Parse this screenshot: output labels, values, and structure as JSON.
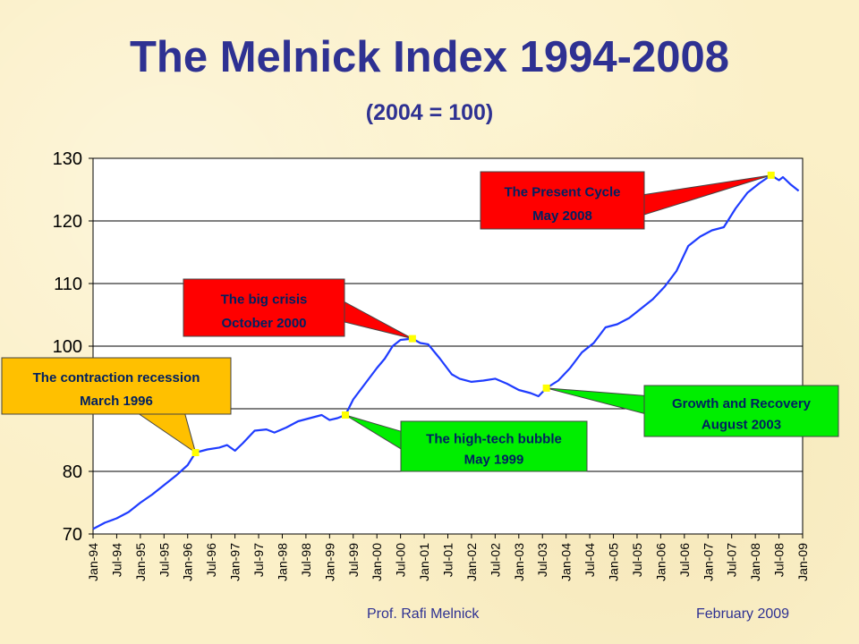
{
  "title": "The Melnick Index 1994-2008",
  "subtitle": "(2004 = 100)",
  "footer": {
    "author": "Prof. Rafi Melnick",
    "date": "February 2009"
  },
  "colors": {
    "title": "#2e3192",
    "series": "#1f3cff",
    "marker": "#ffff00",
    "callout_red": "#ff0000",
    "callout_green": "#00ee00",
    "callout_orange": "#ffc000",
    "plot_bg": "#ffffff"
  },
  "chart_data": {
    "type": "line",
    "title": "The Melnick Index 1994-2008",
    "subtitle": "(2004 = 100)",
    "ylim": [
      70,
      130
    ],
    "yticks": [
      70,
      80,
      90,
      100,
      110,
      120,
      130
    ],
    "ytick_labels": [
      "70",
      "80",
      "",
      "100",
      "110",
      "120",
      "130"
    ],
    "grid": "horizontal",
    "xtick_labels": [
      "Jan-94",
      "Jul-94",
      "Jan-95",
      "Jul-95",
      "Jan-96",
      "Jul-96",
      "Jan-97",
      "Jul-97",
      "Jan-98",
      "Jul-98",
      "Jan-99",
      "Jul-99",
      "Jan-00",
      "Jul-00",
      "Jan-01",
      "Jul-01",
      "Jan-02",
      "Jul-02",
      "Jan-03",
      "Jul-03",
      "Jan-04",
      "Jul-04",
      "Jan-05",
      "Jul-05",
      "Jan-06",
      "Jul-06",
      "Jan-07",
      "Jul-07",
      "Jan-08",
      "Jul-08",
      "Jan-09"
    ],
    "series": [
      {
        "points": [
          [
            "1994-01",
            70.8
          ],
          [
            "1994-04",
            71.8
          ],
          [
            "1994-07",
            72.5
          ],
          [
            "1994-10",
            73.5
          ],
          [
            "1995-01",
            75.0
          ],
          [
            "1995-04",
            76.3
          ],
          [
            "1995-07",
            77.8
          ],
          [
            "1995-10",
            79.3
          ],
          [
            "1996-01",
            81.0
          ],
          [
            "1996-03",
            83.0
          ],
          [
            "1996-06",
            83.5
          ],
          [
            "1996-09",
            83.8
          ],
          [
            "1996-11",
            84.2
          ],
          [
            "1997-01",
            83.3
          ],
          [
            "1997-03",
            84.5
          ],
          [
            "1997-06",
            86.5
          ],
          [
            "1997-09",
            86.7
          ],
          [
            "1997-11",
            86.2
          ],
          [
            "1998-02",
            87.0
          ],
          [
            "1998-05",
            88.0
          ],
          [
            "1998-08",
            88.5
          ],
          [
            "1998-11",
            89.0
          ],
          [
            "1999-01",
            88.2
          ],
          [
            "1999-03",
            88.5
          ],
          [
            "1999-05",
            89.0
          ],
          [
            "1999-07",
            91.5
          ],
          [
            "1999-10",
            94.0
          ],
          [
            "2000-01",
            96.5
          ],
          [
            "2000-03",
            98.0
          ],
          [
            "2000-05",
            100.0
          ],
          [
            "2000-07",
            101.0
          ],
          [
            "2000-10",
            101.2
          ],
          [
            "2000-12",
            100.5
          ],
          [
            "2001-02",
            100.3
          ],
          [
            "2001-05",
            98.0
          ],
          [
            "2001-08",
            95.5
          ],
          [
            "2001-10",
            94.8
          ],
          [
            "2002-01",
            94.3
          ],
          [
            "2002-04",
            94.5
          ],
          [
            "2002-07",
            94.8
          ],
          [
            "2002-10",
            94.0
          ],
          [
            "2003-01",
            93.0
          ],
          [
            "2003-04",
            92.5
          ],
          [
            "2003-06",
            92.0
          ],
          [
            "2003-08",
            93.3
          ],
          [
            "2003-11",
            94.5
          ],
          [
            "2004-02",
            96.5
          ],
          [
            "2004-05",
            99.0
          ],
          [
            "2004-08",
            100.5
          ],
          [
            "2004-11",
            103.0
          ],
          [
            "2005-02",
            103.5
          ],
          [
            "2005-05",
            104.5
          ],
          [
            "2005-08",
            106.0
          ],
          [
            "2005-11",
            107.5
          ],
          [
            "2006-02",
            109.5
          ],
          [
            "2006-05",
            112.0
          ],
          [
            "2006-08",
            116.0
          ],
          [
            "2006-11",
            117.5
          ],
          [
            "2007-02",
            118.5
          ],
          [
            "2007-05",
            119.0
          ],
          [
            "2007-08",
            122.0
          ],
          [
            "2007-11",
            124.5
          ],
          [
            "2008-02",
            126.0
          ],
          [
            "2008-05",
            127.3
          ],
          [
            "2008-07",
            126.5
          ],
          [
            "2008-08",
            127.0
          ],
          [
            "2008-10",
            125.8
          ],
          [
            "2008-12",
            124.8
          ]
        ]
      }
    ],
    "annotations": [
      {
        "label": "The contraction recession",
        "date_text": "March 1996",
        "at": "1996-03",
        "value": 83.0,
        "color": "#ffc000",
        "text_color": "#002060"
      },
      {
        "label": "The high-tech bubble",
        "date_text": "May 1999",
        "at": "1999-05",
        "value": 89.0,
        "color": "#00ee00",
        "text_color": "#002060"
      },
      {
        "label": "The big crisis",
        "date_text": "October 2000",
        "at": "2000-10",
        "value": 101.2,
        "color": "#ff0000",
        "text_color": "#002060"
      },
      {
        "label": "Growth and Recovery",
        "date_text": "August 2003",
        "at": "2003-08",
        "value": 93.3,
        "color": "#00ee00",
        "text_color": "#002060"
      },
      {
        "label": "The Present Cycle",
        "date_text": "May 2008",
        "at": "2008-05",
        "value": 127.3,
        "color": "#ff0000",
        "text_color": "#002060"
      }
    ]
  }
}
